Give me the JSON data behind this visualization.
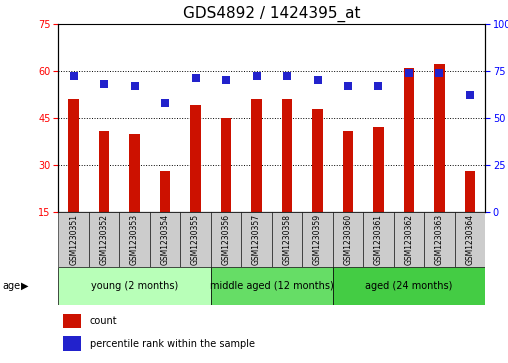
{
  "title": "GDS4892 / 1424395_at",
  "samples": [
    "GSM1230351",
    "GSM1230352",
    "GSM1230353",
    "GSM1230354",
    "GSM1230355",
    "GSM1230356",
    "GSM1230357",
    "GSM1230358",
    "GSM1230359",
    "GSM1230360",
    "GSM1230361",
    "GSM1230362",
    "GSM1230363",
    "GSM1230364"
  ],
  "counts": [
    51,
    41,
    40,
    28,
    49,
    45,
    51,
    51,
    48,
    41,
    42,
    61,
    62,
    28
  ],
  "percentiles": [
    72,
    68,
    67,
    58,
    71,
    70,
    72,
    72,
    70,
    67,
    67,
    74,
    74,
    62
  ],
  "groups": [
    {
      "label": "young (2 months)",
      "start": 0,
      "end": 5,
      "color": "#b8ffb8"
    },
    {
      "label": "middle aged (12 months)",
      "start": 5,
      "end": 9,
      "color": "#66dd66"
    },
    {
      "label": "aged (24 months)",
      "start": 9,
      "end": 14,
      "color": "#44cc44"
    }
  ],
  "ylim_left": [
    15,
    75
  ],
  "ylim_right": [
    0,
    100
  ],
  "yticks_left": [
    15,
    30,
    45,
    60,
    75
  ],
  "yticks_right": [
    0,
    25,
    50,
    75,
    100
  ],
  "bar_color": "#cc1100",
  "dot_color": "#2222cc",
  "bar_width": 0.35,
  "dot_size": 40,
  "tick_area_color": "#cccccc",
  "title_fontsize": 11,
  "tick_fontsize": 7,
  "sample_fontsize": 5.5,
  "group_fontsize": 7,
  "legend_fontsize": 7
}
